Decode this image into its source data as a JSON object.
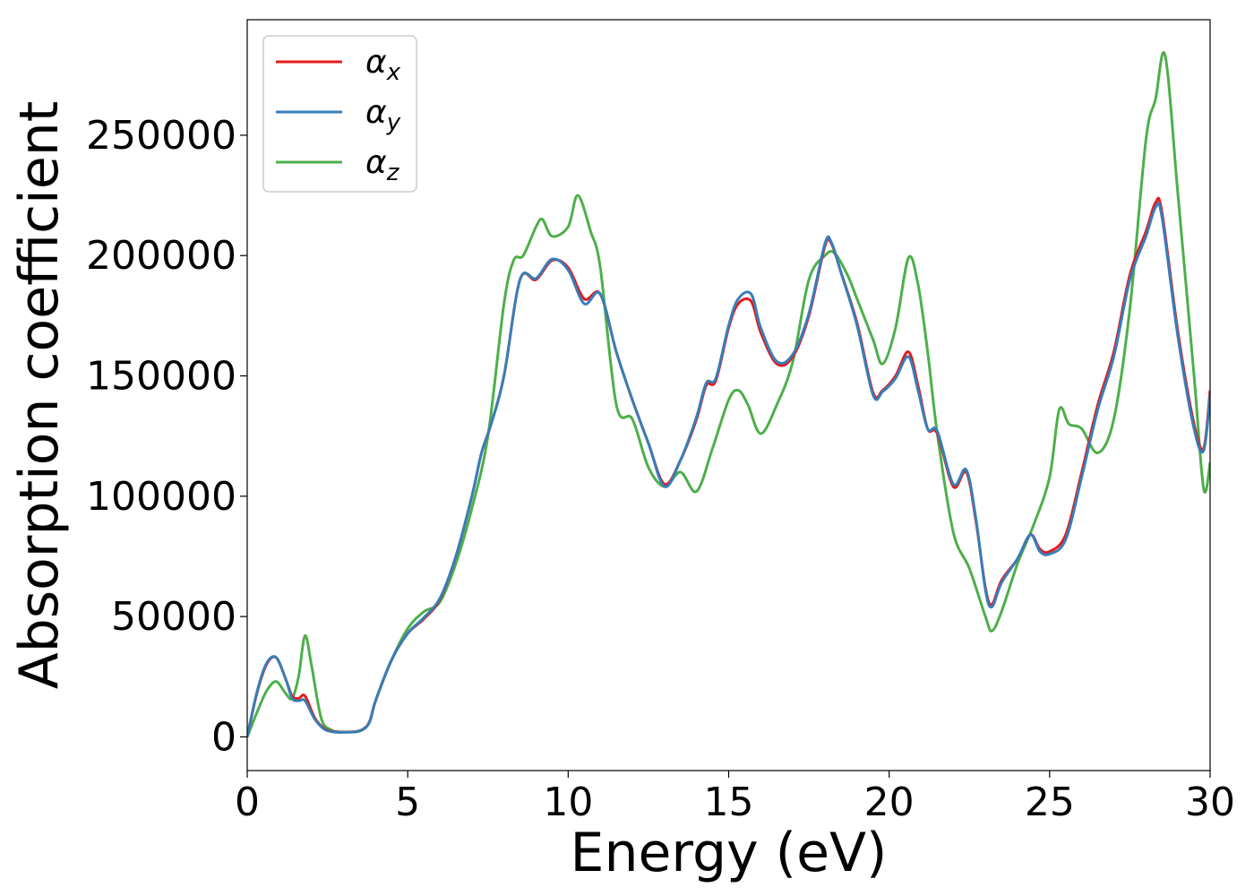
{
  "chart_data": {
    "type": "line",
    "title": "",
    "xlabel": "Energy (eV)",
    "ylabel": "Absorption coefficient",
    "xlim": [
      0,
      30
    ],
    "ylim": [
      -14000,
      298000
    ],
    "xticks": [
      0,
      5,
      10,
      15,
      20,
      25,
      30
    ],
    "yticks": [
      0,
      50000,
      100000,
      150000,
      200000,
      250000
    ],
    "grid": false,
    "legend_position": "top-left",
    "series": [
      {
        "name": "α",
        "subscript": "x",
        "color": "#e41a1c",
        "x": [
          0,
          0.3,
          0.6,
          0.9,
          1.2,
          1.4,
          1.6,
          1.8,
          2.1,
          2.4,
          2.7,
          3.0,
          3.5,
          3.8,
          4.0,
          4.5,
          5.0,
          5.5,
          6.0,
          6.5,
          7.0,
          7.3,
          7.6,
          8.0,
          8.5,
          9.0,
          9.5,
          10.0,
          10.5,
          11.0,
          11.5,
          12.0,
          12.5,
          13.0,
          13.5,
          14.0,
          14.3,
          14.6,
          15.0,
          15.3,
          15.7,
          16.0,
          16.5,
          17.0,
          17.5,
          18.0,
          18.2,
          18.5,
          19.0,
          19.5,
          19.8,
          20.2,
          20.6,
          20.9,
          21.2,
          21.5,
          22.0,
          22.4,
          22.7,
          23.0,
          23.2,
          23.5,
          24.0,
          24.4,
          24.7,
          25.0,
          25.5,
          26.0,
          26.5,
          27.0,
          27.5,
          28.0,
          28.3,
          28.5,
          29.0,
          29.5,
          29.8,
          30.0
        ],
        "y": [
          0,
          18000,
          30000,
          33000,
          24000,
          17000,
          16000,
          17000,
          8000,
          3500,
          2200,
          2000,
          2500,
          6000,
          15000,
          32000,
          43000,
          49000,
          57000,
          75000,
          100000,
          118000,
          130000,
          150000,
          190000,
          190000,
          198000,
          195000,
          182000,
          184000,
          160000,
          140000,
          122000,
          105000,
          115000,
          132000,
          146000,
          148000,
          170000,
          180000,
          181000,
          168000,
          155000,
          158000,
          175000,
          204000,
          205000,
          193000,
          172000,
          143000,
          144000,
          150000,
          160000,
          146000,
          128000,
          126000,
          104000,
          110000,
          90000,
          62000,
          55000,
          65000,
          74000,
          84000,
          78000,
          77000,
          84000,
          110000,
          138000,
          160000,
          192000,
          210000,
          222000,
          218000,
          168000,
          130000,
          120000,
          144000
        ]
      },
      {
        "name": "α",
        "subscript": "y",
        "color": "#377eb8",
        "x": [
          0,
          0.3,
          0.6,
          0.9,
          1.2,
          1.4,
          1.6,
          1.8,
          2.1,
          2.4,
          2.7,
          3.0,
          3.5,
          3.8,
          4.0,
          4.5,
          5.0,
          5.5,
          6.0,
          6.5,
          7.0,
          7.3,
          7.6,
          8.0,
          8.5,
          9.0,
          9.5,
          10.0,
          10.5,
          11.0,
          11.5,
          12.0,
          12.5,
          13.0,
          13.5,
          14.0,
          14.3,
          14.6,
          15.0,
          15.3,
          15.7,
          16.0,
          16.5,
          17.0,
          17.5,
          18.0,
          18.2,
          18.5,
          19.0,
          19.5,
          19.8,
          20.2,
          20.6,
          20.9,
          21.2,
          21.5,
          22.0,
          22.4,
          22.7,
          23.0,
          23.2,
          23.5,
          24.0,
          24.4,
          24.7,
          25.0,
          25.5,
          26.0,
          26.5,
          27.0,
          27.5,
          28.0,
          28.3,
          28.5,
          29.0,
          29.5,
          29.8,
          30.0
        ],
        "y": [
          0,
          18500,
          30500,
          33000,
          24000,
          16000,
          15000,
          15000,
          7500,
          3200,
          2000,
          1900,
          2400,
          5800,
          15000,
          32000,
          43000,
          49500,
          57500,
          75000,
          100000,
          118000,
          130000,
          150000,
          190000,
          190500,
          198500,
          194000,
          180000,
          184000,
          160000,
          140000,
          122000,
          104000,
          115000,
          133000,
          147000,
          149000,
          171000,
          182000,
          184000,
          170000,
          156000,
          159000,
          176000,
          205000,
          205500,
          193000,
          171000,
          142000,
          143500,
          149000,
          158000,
          144000,
          128000,
          127000,
          105000,
          111000,
          91000,
          61000,
          54000,
          64000,
          74000,
          84000,
          77000,
          76000,
          82000,
          108000,
          136000,
          158000,
          190000,
          208000,
          220000,
          216000,
          166000,
          128000,
          119000,
          142000
        ]
      },
      {
        "name": "α",
        "subscript": "z",
        "color": "#4daf4a",
        "x": [
          0,
          0.3,
          0.6,
          0.9,
          1.2,
          1.4,
          1.6,
          1.8,
          2.0,
          2.3,
          2.6,
          3.0,
          3.5,
          3.8,
          4.0,
          4.5,
          5.0,
          5.5,
          6.0,
          6.5,
          7.0,
          7.5,
          8.0,
          8.3,
          8.6,
          9.0,
          9.2,
          9.5,
          10.0,
          10.3,
          10.7,
          11.0,
          11.5,
          12.0,
          12.5,
          13.0,
          13.5,
          14.0,
          14.5,
          15.0,
          15.3,
          15.6,
          16.0,
          16.5,
          17.0,
          17.5,
          18.0,
          18.3,
          18.7,
          19.0,
          19.5,
          19.8,
          20.2,
          20.6,
          20.9,
          21.2,
          21.5,
          22.0,
          22.5,
          23.0,
          23.2,
          23.5,
          24.0,
          24.5,
          25.0,
          25.3,
          25.6,
          26.0,
          26.5,
          27.0,
          27.5,
          28.0,
          28.3,
          28.6,
          29.0,
          29.5,
          29.8,
          30.0
        ],
        "y": [
          0,
          10000,
          19000,
          23000,
          18000,
          16000,
          25000,
          42000,
          30000,
          8000,
          3000,
          2000,
          2500,
          6000,
          15000,
          32000,
          45000,
          52000,
          56000,
          72000,
          95000,
          125000,
          180000,
          198000,
          200000,
          212000,
          215000,
          208000,
          212000,
          225000,
          210000,
          195000,
          138000,
          132000,
          112000,
          104000,
          110000,
          102000,
          120000,
          140000,
          144000,
          138000,
          126000,
          138000,
          156000,
          190000,
          200000,
          201000,
          192000,
          182000,
          165000,
          155000,
          170000,
          199000,
          188000,
          160000,
          126000,
          85000,
          70000,
          50000,
          44000,
          52000,
          72000,
          88000,
          108000,
          136000,
          130000,
          128000,
          118000,
          132000,
          178000,
          248000,
          265000,
          283000,
          225000,
          150000,
          103000,
          114000
        ]
      }
    ]
  }
}
